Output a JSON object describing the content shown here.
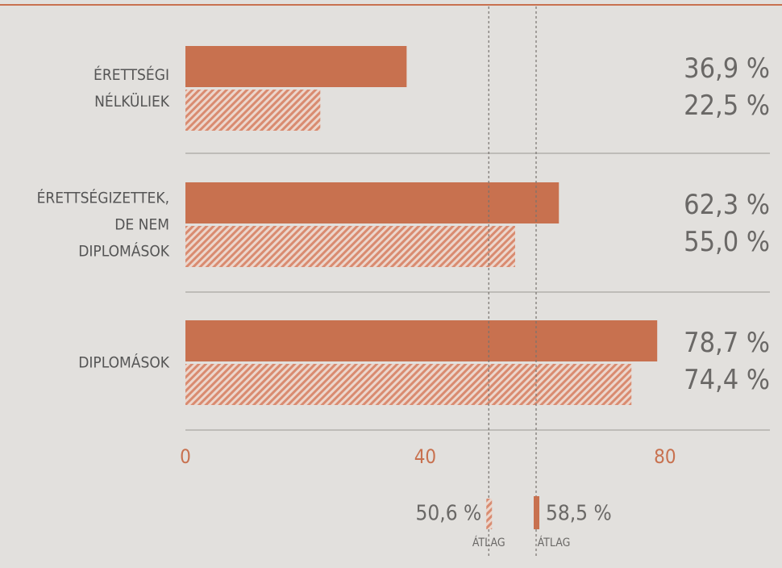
{
  "chart_data": {
    "type": "barh",
    "categories": [
      "ÉRETTSÉGI\nNÉLKÜLIEK",
      "ÉRETTSÉGIZETTEK,\nDE NEM\nDIPLOMÁSOK",
      "DIPLOMÁSOK"
    ],
    "series": [
      {
        "color": "#c8714f",
        "pattern": "solid",
        "values": [
          36.9,
          62.3,
          78.7
        ],
        "value_labels": [
          "36,9 %",
          "62,3 %",
          "78,7 %"
        ],
        "average": 58.5,
        "average_label": "58,5 %",
        "average_caption": "ÁTLAG"
      },
      {
        "color": "#d98b70",
        "pattern": "hatch",
        "values": [
          22.5,
          55.0,
          74.4
        ],
        "value_labels": [
          "22,5 %",
          "55,0 %",
          "74,4 %"
        ],
        "average": 50.6,
        "average_label": "50,6 %",
        "average_caption": "ÁTLAG"
      }
    ],
    "xlim": [
      0,
      97.5
    ],
    "xticks": [
      0,
      40,
      80
    ]
  }
}
